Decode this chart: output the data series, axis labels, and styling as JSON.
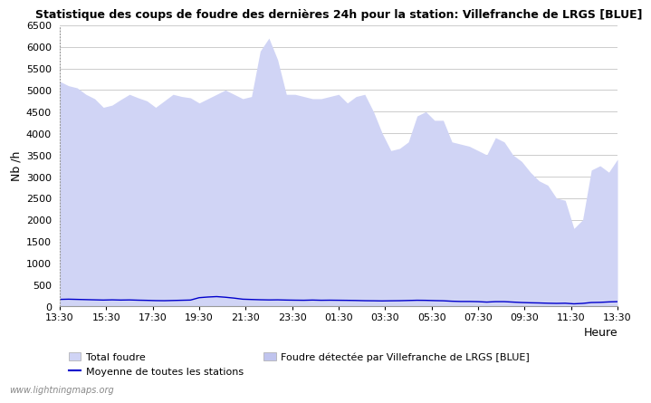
{
  "title": "Statistique des coups de foudre des dernières 24h pour la station: Villefranche de LRGS [BLUE]",
  "ylabel": "Nb /h",
  "xlabel": "Heure",
  "watermark": "www.lightningmaps.org",
  "ylim": [
    0,
    6500
  ],
  "yticks": [
    0,
    500,
    1000,
    1500,
    2000,
    2500,
    3000,
    3500,
    4000,
    4500,
    5000,
    5500,
    6000,
    6500
  ],
  "xtick_labels": [
    "13:30",
    "15:30",
    "17:30",
    "19:30",
    "21:30",
    "23:30",
    "01:30",
    "03:30",
    "05:30",
    "07:30",
    "09:30",
    "11:30",
    "13:30"
  ],
  "bg_color": "#ffffff",
  "plot_bg_color": "#ffffff",
  "grid_color": "#cccccc",
  "fill_color_total": "#d0d4f5",
  "fill_color_local": "#c0c4ee",
  "line_color": "#0000cc",
  "legend_total": "Total foudre",
  "legend_mean": "Moyenne de toutes les stations",
  "legend_local": "Foudre détectée par Villefranche de LRGS [BLUE]",
  "total_values": [
    5200,
    5100,
    5050,
    4900,
    4800,
    4600,
    4650,
    4780,
    4900,
    4820,
    4750,
    4600,
    4750,
    4900,
    4850,
    4820,
    4700,
    4800,
    4900,
    5000,
    4900,
    4800,
    4850,
    5900,
    6200,
    5700,
    4900,
    4900,
    4850,
    4800,
    4800,
    4850,
    4900,
    4700,
    4850,
    4900,
    4500,
    4000,
    3600,
    3650,
    3800,
    4400,
    4500,
    4300,
    4300,
    3800,
    3750,
    3700,
    3600,
    3500,
    3900,
    3800,
    3500,
    3350,
    3100,
    2900,
    2800,
    2500,
    2450,
    1800,
    2000,
    3150,
    3250,
    3100,
    3400
  ],
  "mean_values": [
    160,
    165,
    160,
    155,
    150,
    145,
    150,
    145,
    148,
    142,
    138,
    132,
    130,
    135,
    140,
    145,
    200,
    215,
    225,
    210,
    190,
    165,
    158,
    152,
    148,
    150,
    145,
    142,
    140,
    145,
    140,
    142,
    140,
    138,
    135,
    130,
    128,
    125,
    128,
    130,
    135,
    140,
    138,
    132,
    128,
    118,
    112,
    112,
    108,
    98,
    108,
    108,
    98,
    88,
    82,
    78,
    72,
    68,
    72,
    58,
    68,
    88,
    92,
    102,
    108
  ],
  "local_values": [
    0,
    0,
    0,
    0,
    0,
    0,
    0,
    0,
    0,
    0,
    0,
    0,
    0,
    0,
    0,
    0,
    0,
    0,
    0,
    0,
    0,
    0,
    0,
    0,
    0,
    0,
    0,
    0,
    0,
    0,
    0,
    0,
    0,
    0,
    0,
    0,
    0,
    0,
    0,
    0,
    0,
    0,
    0,
    0,
    0,
    0,
    0,
    0,
    0,
    0,
    0,
    0,
    0,
    0,
    0,
    0,
    0,
    0,
    0,
    0,
    0,
    0,
    0,
    0,
    0
  ]
}
